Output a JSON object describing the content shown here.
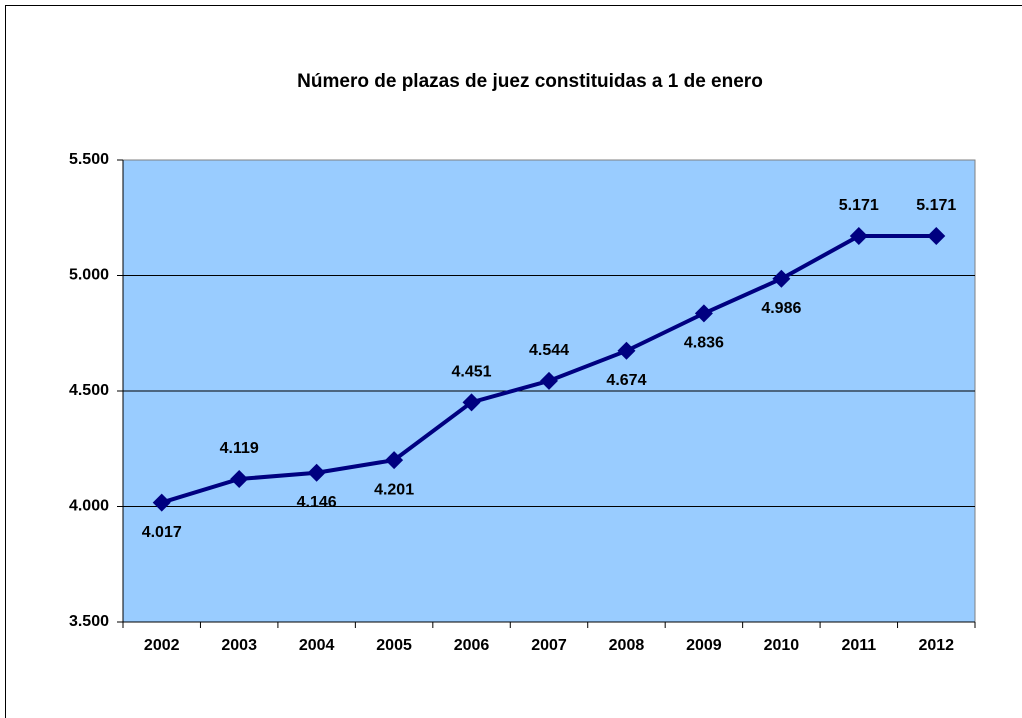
{
  "chart_data": {
    "type": "line",
    "title": "Número de plazas de juez constituidas  a 1 de enero",
    "categories": [
      "2002",
      "2003",
      "2004",
      "2005",
      "2006",
      "2007",
      "2008",
      "2009",
      "2010",
      "2011",
      "2012"
    ],
    "series": [
      {
        "name": "Plazas de juez",
        "color": "#000080",
        "values": [
          4017,
          4119,
          4146,
          4201,
          4451,
          4544,
          4674,
          4836,
          4986,
          5171,
          5171
        ],
        "value_labels": [
          "4.017",
          "4.119",
          "4.146",
          "4.201",
          "4.451",
          "4.544",
          "4.674",
          "4.836",
          "4.986",
          "5.171",
          "5.171"
        ]
      }
    ],
    "ylim": [
      3500,
      5500
    ],
    "yticks": [
      {
        "value": 3500,
        "label": "3.500"
      },
      {
        "value": 4000,
        "label": "4.000"
      },
      {
        "value": 4500,
        "label": "4.500"
      },
      {
        "value": 5000,
        "label": "5.000"
      },
      {
        "value": 5500,
        "label": "5.500"
      }
    ],
    "grid": true,
    "plot_background": "#99ccff"
  }
}
